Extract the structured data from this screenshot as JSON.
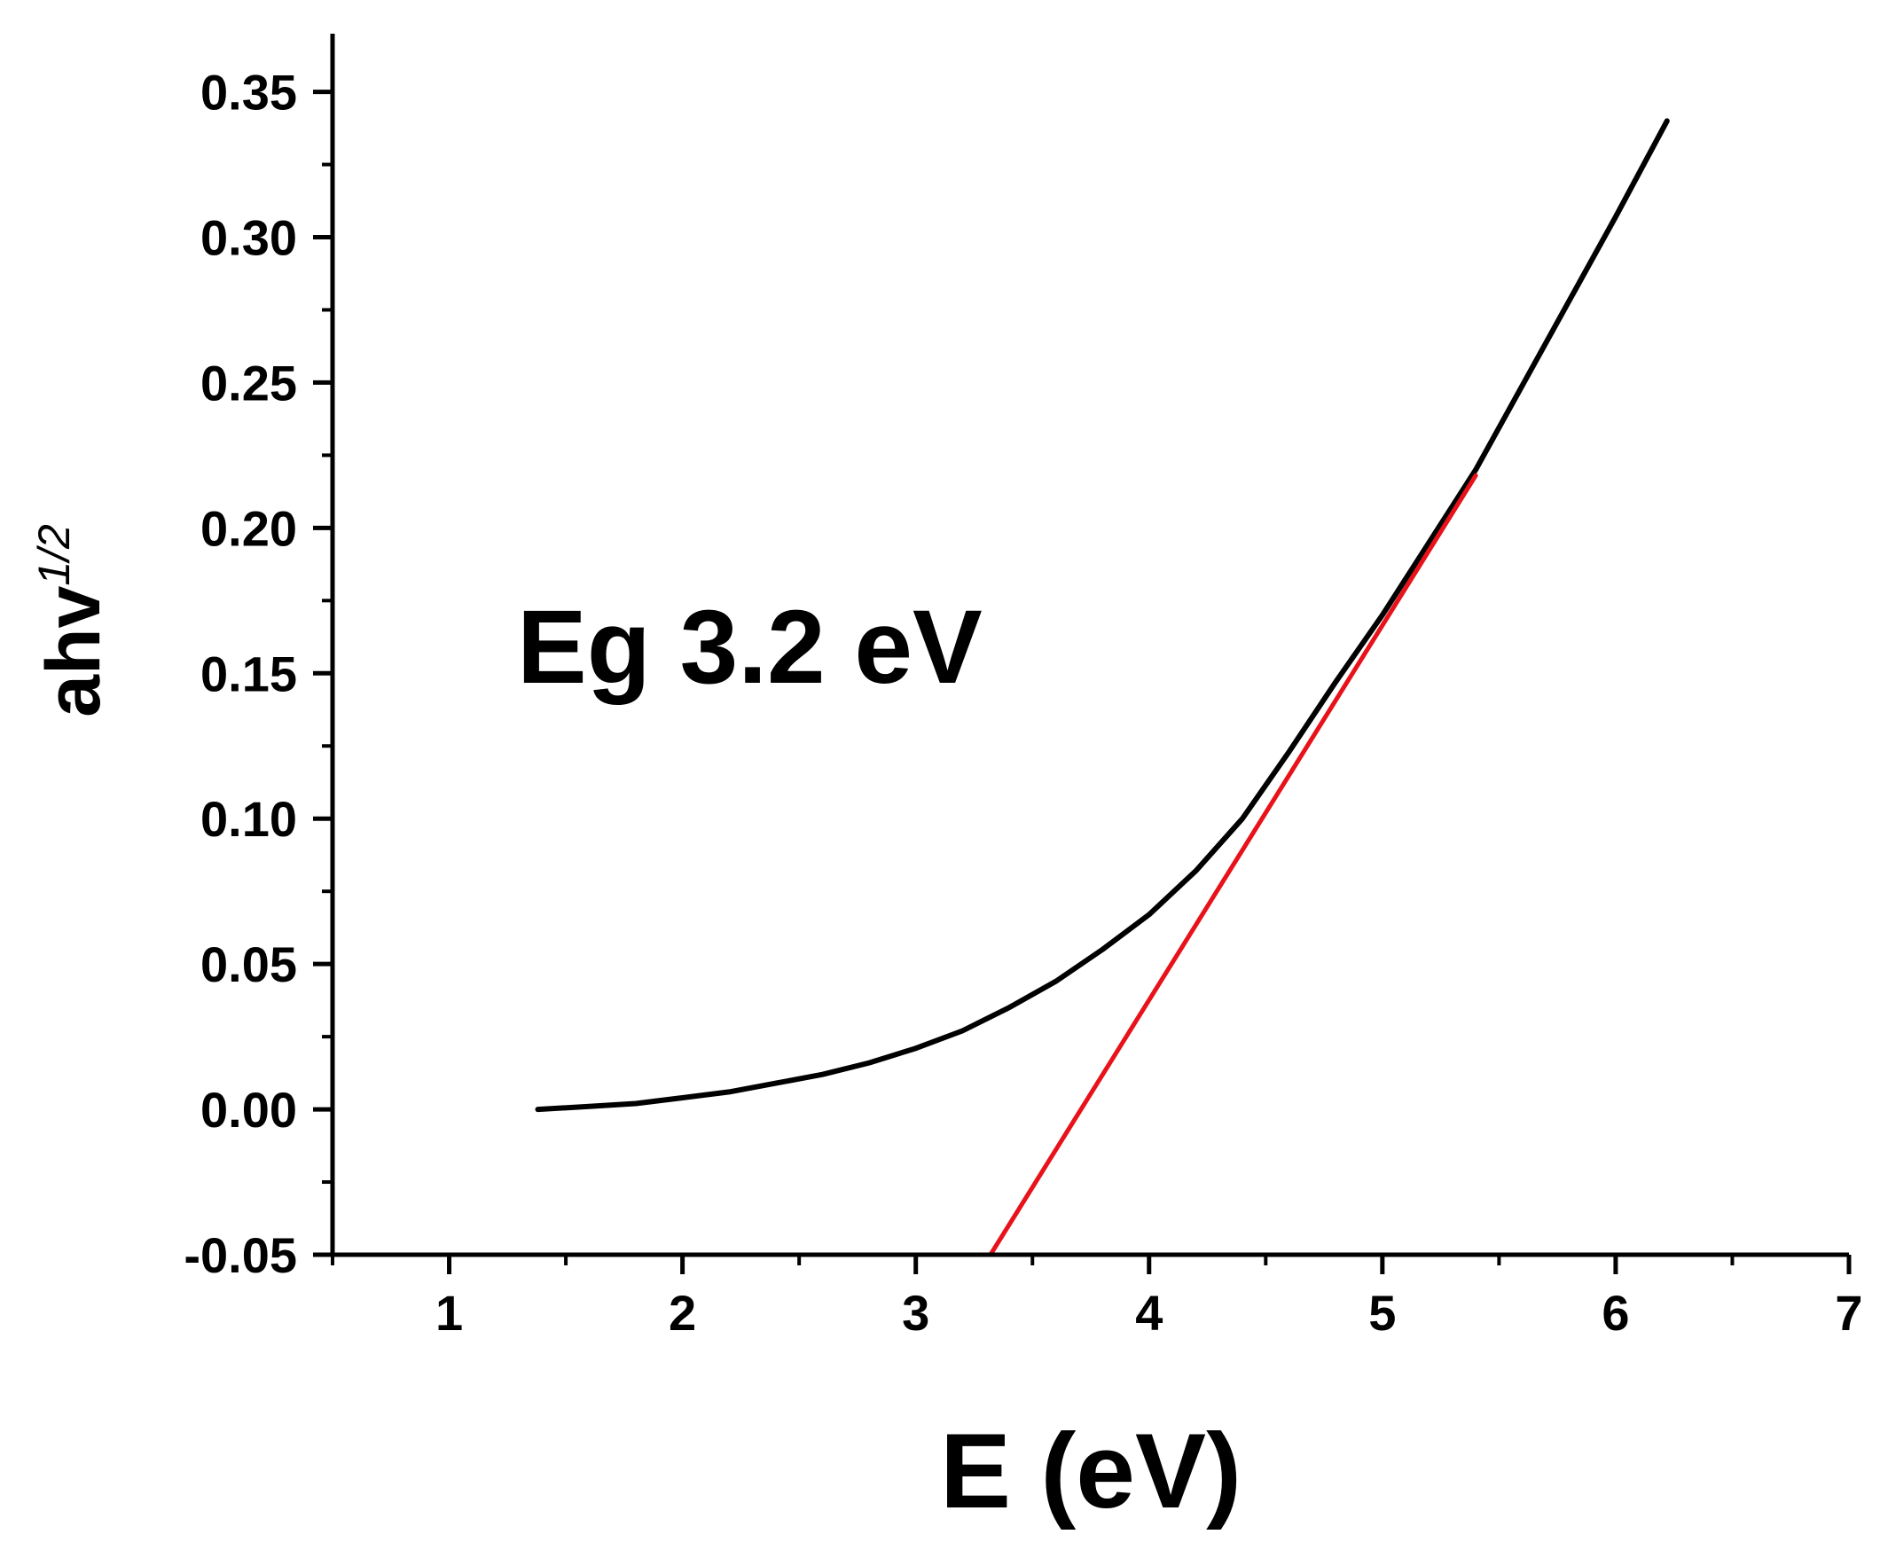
{
  "chart_data": {
    "type": "line",
    "title": "",
    "xlabel": "E (eV)",
    "ylabel_main": "ahv",
    "ylabel_sup": "1/2",
    "xlim": [
      0.5,
      7
    ],
    "ylim": [
      -0.05,
      0.37
    ],
    "x_ticks": [
      1,
      2,
      3,
      4,
      5,
      6,
      7
    ],
    "x_tick_labels": [
      "1",
      "2",
      "3",
      "4",
      "5",
      "6",
      "7"
    ],
    "y_ticks": [
      -0.05,
      0,
      0.05,
      0.1,
      0.15,
      0.2,
      0.25,
      0.3,
      0.35
    ],
    "y_tick_labels": [
      "-0.05",
      "0.00",
      "0.05",
      "0.10",
      "0.15",
      "0.20",
      "0.25",
      "0.30",
      "0.35"
    ],
    "grid": false,
    "annotation": "Eg 3.2 eV",
    "series": [
      {
        "color": "#000000",
        "x": [
          1.38,
          1.6,
          1.8,
          2.0,
          2.2,
          2.4,
          2.6,
          2.8,
          3.0,
          3.2,
          3.4,
          3.6,
          3.8,
          4.0,
          4.2,
          4.4,
          4.6,
          4.8,
          5.0,
          5.2,
          5.4,
          5.6,
          5.8,
          6.0,
          6.22
        ],
        "y": [
          0.0,
          0.001,
          0.002,
          0.004,
          0.006,
          0.009,
          0.012,
          0.016,
          0.021,
          0.027,
          0.035,
          0.044,
          0.055,
          0.067,
          0.082,
          0.1,
          0.123,
          0.147,
          0.17,
          0.195,
          0.22,
          0.249,
          0.278,
          0.307,
          0.34
        ]
      },
      {
        "color": "#e8121a",
        "x": [
          3.32,
          5.4
        ],
        "y": [
          -0.05,
          0.218
        ]
      }
    ]
  }
}
